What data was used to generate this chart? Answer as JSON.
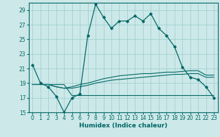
{
  "xlabel": "Humidex (Indice chaleur)",
  "background_color": "#cce8e8",
  "grid_color": "#99cccc",
  "line_color": "#006666",
  "xlim": [
    -0.5,
    23.5
  ],
  "ylim": [
    15,
    30
  ],
  "yticks": [
    15,
    17,
    19,
    21,
    23,
    25,
    27,
    29
  ],
  "xticks": [
    0,
    1,
    2,
    3,
    4,
    5,
    6,
    7,
    8,
    9,
    10,
    11,
    12,
    13,
    14,
    15,
    16,
    17,
    18,
    19,
    20,
    21,
    22,
    23
  ],
  "main_line_x": [
    0,
    1,
    2,
    3,
    4,
    5,
    6,
    7,
    8,
    9,
    10,
    11,
    12,
    13,
    14,
    15,
    16,
    17,
    18,
    19,
    20,
    21,
    22,
    23
  ],
  "main_line_y": [
    21.5,
    19.0,
    18.5,
    17.2,
    15.0,
    17.0,
    17.5,
    25.5,
    29.8,
    28.0,
    26.5,
    27.5,
    27.5,
    28.2,
    27.5,
    28.5,
    26.5,
    25.5,
    24.0,
    21.2,
    19.8,
    19.5,
    18.5,
    17.0
  ],
  "flat_line1_x": [
    0,
    1,
    2,
    3,
    4,
    5,
    6,
    7,
    8,
    9,
    10,
    11,
    12,
    13,
    14,
    15,
    16,
    17,
    18,
    19,
    20,
    21,
    22,
    23
  ],
  "flat_line1_y": [
    18.8,
    18.8,
    18.8,
    18.8,
    18.8,
    17.3,
    17.3,
    17.3,
    17.3,
    17.3,
    17.3,
    17.3,
    17.3,
    17.3,
    17.3,
    17.3,
    17.3,
    17.3,
    17.3,
    17.3,
    17.3,
    17.3,
    17.3,
    17.3
  ],
  "flat_line2_x": [
    0,
    1,
    2,
    3,
    4,
    5,
    6,
    7,
    8,
    9,
    10,
    11,
    12,
    13,
    14,
    15,
    16,
    17,
    18,
    19,
    20,
    21,
    22,
    23
  ],
  "flat_line2_y": [
    18.8,
    18.8,
    18.8,
    18.5,
    18.3,
    18.3,
    18.5,
    18.7,
    19.0,
    19.2,
    19.4,
    19.5,
    19.6,
    19.7,
    19.8,
    19.9,
    20.0,
    20.1,
    20.2,
    20.2,
    20.3,
    20.3,
    19.8,
    19.8
  ],
  "flat_line3_x": [
    0,
    1,
    2,
    3,
    4,
    5,
    6,
    7,
    8,
    9,
    10,
    11,
    12,
    13,
    14,
    15,
    16,
    17,
    18,
    19,
    20,
    21,
    22,
    23
  ],
  "flat_line3_y": [
    18.8,
    18.8,
    18.8,
    18.5,
    18.3,
    18.5,
    18.8,
    19.0,
    19.3,
    19.6,
    19.8,
    20.0,
    20.1,
    20.2,
    20.3,
    20.3,
    20.4,
    20.5,
    20.5,
    20.6,
    20.7,
    20.7,
    20.1,
    20.1
  ],
  "xlabel_fontsize": 6.5,
  "tick_fontsize": 5.5
}
